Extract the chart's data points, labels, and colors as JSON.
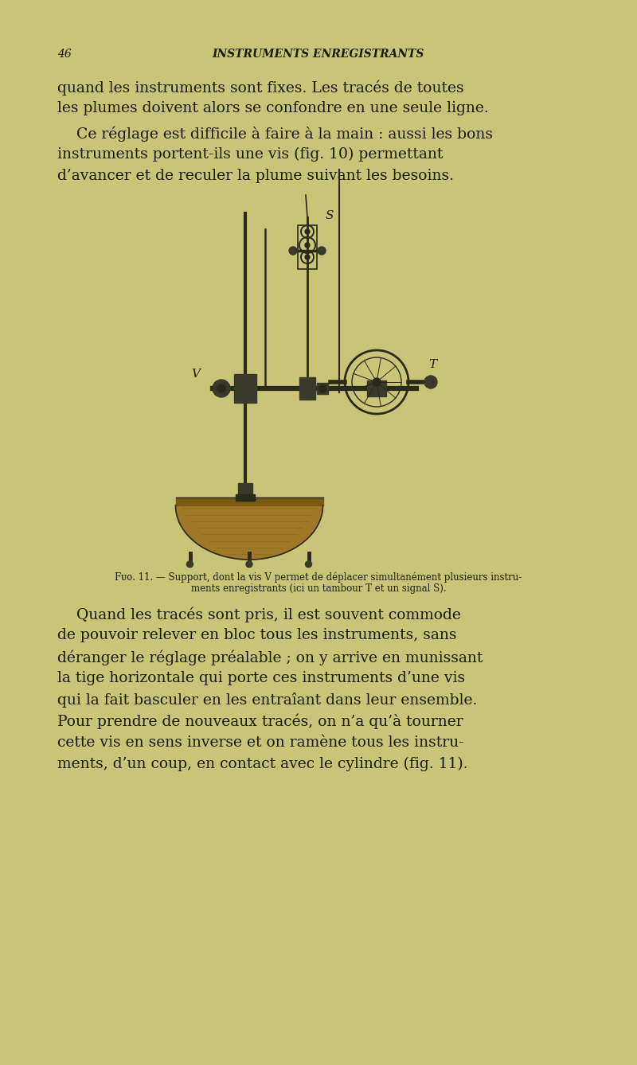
{
  "bg_color": "#c8c579",
  "text_color": "#1a1a0a",
  "page_number": "46",
  "header_title": "INSTRUMENTS ENREGISTRANTS",
  "header_fontsize": 10,
  "body_fontsize": 13.5,
  "caption_fontsize": 8.5,
  "para1_lines": [
    "quand les instruments sont fixes. Les tracés de toutes",
    "les plumes doivent alors se confondre en une seule ligne."
  ],
  "para2_lines": [
    "    Ce réglage est difficile à faire à la main : aussi les bons",
    "instruments portent-ils une vis (fig. 10) permettant",
    "d’avancer et de reculer la plume suivant les besoins."
  ],
  "caption_line1": "Fᴜᴏ. 11. — Support, dont la vis V permet de déplacer simultanément plusieurs instru-",
  "caption_line2": "ments enregistrants (ici un tambour T et un signal S).",
  "para3_lines": [
    "    Quand les tracés sont pris, il est souvent commode",
    "de pouvoir relever en bloc tous les instruments, sans",
    "déranger le réglage préalable ; on y arrive en munissant",
    "la tige horizontale qui porte ces instruments d’une vis",
    "qui la fait basculer en les entraîant dans leur ensemble.",
    "Pour prendre de nouveaux tracés, on n’a qu’à tourner",
    "cette vis en sens inverse et on ramène tous les instru-",
    "ments, d’un coup, en contact avec le cylindre (fig. 11)."
  ],
  "label_S": "S",
  "label_T": "T",
  "label_V": "V",
  "wood_color": "#a07828",
  "wood_dark": "#7a5a10",
  "metal_color": "#2a2a1a",
  "metal_mid": "#3a3a2a"
}
